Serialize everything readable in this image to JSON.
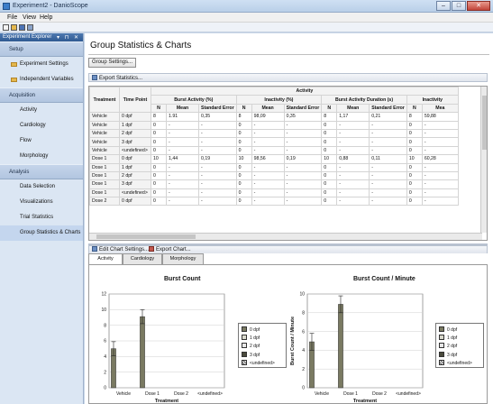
{
  "window": {
    "title": "Experiment2 - DanioScope",
    "buttons": {
      "minimize": "–",
      "maximize": "□",
      "close": "✕"
    }
  },
  "menu": {
    "items": [
      "File",
      "View",
      "Help"
    ]
  },
  "toolbar": {
    "icons": [
      "new-icon",
      "open-icon",
      "save-icon",
      "save-as-icon"
    ]
  },
  "explorer": {
    "title": "Experiment Explorer",
    "header_buttons": "▾ ⊓ ✕",
    "groups": [
      {
        "label": "Setup",
        "items": [
          "Experiment Settings",
          "Independent Variables"
        ]
      },
      {
        "label": "Acquisition",
        "items": [
          "Activity",
          "Cardiology",
          "Flow",
          "Morphology"
        ]
      },
      {
        "label": "Analysis",
        "items": [
          "Data Selection",
          "Visualizations",
          "Trial Statistics",
          "Group Statistics & Charts"
        ]
      }
    ],
    "selected": "Group Statistics & Charts"
  },
  "main": {
    "title": "Group Statistics & Charts",
    "group_settings_label": "Group Settings...",
    "export_statistics_label": "Export Statistics...",
    "edit_chart_settings_label": "Edit Chart Settings...",
    "export_chart_label": "Export Chart...",
    "tabs": [
      "Activity",
      "Cardiology",
      "Morphology"
    ],
    "active_tab": "Activity"
  },
  "table": {
    "top_group": "Activity",
    "fixed_headers": [
      "Treatment",
      "Time Point"
    ],
    "column_groups": [
      "Burst Activity (%)",
      "Inactivity (%)",
      "Burst Activity Duration (s)",
      "Inactivity"
    ],
    "sub_headers": [
      "N",
      "Mean",
      "Standard Error",
      "N",
      "Mean",
      "Standard Error",
      "N",
      "Mean",
      "Standard Error",
      "N",
      "Mea"
    ],
    "rows": [
      [
        "Vehicle",
        "0 dpf",
        "8",
        "1.91",
        "0,35",
        "8",
        "98,09",
        "0,35",
        "8",
        "1,17",
        "0,21",
        "8",
        "59,88"
      ],
      [
        "Vehicle",
        "1 dpf",
        "0",
        "-",
        "-",
        "0",
        "-",
        "-",
        "0",
        "-",
        "-",
        "0",
        "-"
      ],
      [
        "Vehicle",
        "2 dpf",
        "0",
        "-",
        "-",
        "0",
        "-",
        "-",
        "0",
        "-",
        "-",
        "0",
        "-"
      ],
      [
        "Vehicle",
        "3 dpf",
        "0",
        "-",
        "-",
        "0",
        "-",
        "-",
        "0",
        "-",
        "-",
        "0",
        "-"
      ],
      [
        "Vehicle",
        "<undefined>",
        "0",
        "-",
        "-",
        "0",
        "-",
        "-",
        "0",
        "-",
        "-",
        "0",
        "-"
      ],
      [
        "Dose 1",
        "0 dpf",
        "10",
        "1,44",
        "0,19",
        "10",
        "98,56",
        "0,19",
        "10",
        "0,88",
        "0,11",
        "10",
        "60,28"
      ],
      [
        "Dose 1",
        "1 dpf",
        "0",
        "-",
        "-",
        "0",
        "-",
        "-",
        "0",
        "-",
        "-",
        "0",
        "-"
      ],
      [
        "Dose 1",
        "2 dpf",
        "0",
        "-",
        "-",
        "0",
        "-",
        "-",
        "0",
        "-",
        "-",
        "0",
        "-"
      ],
      [
        "Dose 1",
        "3 dpf",
        "0",
        "-",
        "-",
        "0",
        "-",
        "-",
        "0",
        "-",
        "-",
        "0",
        "-"
      ],
      [
        "Dose 1",
        "<undefined>",
        "0",
        "-",
        "-",
        "0",
        "-",
        "-",
        "0",
        "-",
        "-",
        "0",
        "-"
      ],
      [
        "Dose 2",
        "0 dpf",
        "0",
        "-",
        "-",
        "0",
        "-",
        "-",
        "0",
        "-",
        "-",
        "0",
        "-"
      ]
    ]
  },
  "chart_data": [
    {
      "type": "bar",
      "title": "Burst Count",
      "xlabel": "Treatment",
      "ylabel": "",
      "ylim": [
        0,
        12
      ],
      "yticks": [
        0,
        2,
        4,
        6,
        8,
        10,
        12
      ],
      "categories": [
        "Vehicle",
        "Dose 1",
        "Dose 2",
        "<undefined>"
      ],
      "series": [
        {
          "name": "0 dpf",
          "values": [
            5.0,
            9.1,
            null,
            null
          ],
          "errors": [
            0.9,
            0.9,
            null,
            null
          ],
          "color": "#7a7a62"
        },
        {
          "name": "1 dpf",
          "values": [
            null,
            null,
            null,
            null
          ],
          "color": "#d9d9cc"
        },
        {
          "name": "2 dpf",
          "values": [
            null,
            null,
            null,
            null
          ],
          "color": "#e8e8e8"
        },
        {
          "name": "3 dpf",
          "values": [
            null,
            null,
            null,
            null
          ],
          "color": "#4a4a3c"
        },
        {
          "name": "<undefined>",
          "values": [
            null,
            null,
            null,
            null
          ],
          "color": "#ffffff"
        }
      ],
      "legend": "right",
      "grid": true
    },
    {
      "type": "bar",
      "title": "Burst Count / Minute",
      "xlabel": "Treatment",
      "ylabel": "Burst Count / Minute",
      "ylim": [
        0,
        10
      ],
      "yticks": [
        0,
        2,
        4,
        6,
        8,
        10
      ],
      "categories": [
        "Vehicle",
        "Dose 1",
        "Dose 2",
        "<undefined>"
      ],
      "series": [
        {
          "name": "0 dpf",
          "values": [
            4.9,
            8.9,
            null,
            null
          ],
          "errors": [
            0.9,
            0.9,
            null,
            null
          ],
          "color": "#7a7a62"
        },
        {
          "name": "1 dpf",
          "values": [
            null,
            null,
            null,
            null
          ],
          "color": "#d9d9cc"
        },
        {
          "name": "2 dpf",
          "values": [
            null,
            null,
            null,
            null
          ],
          "color": "#e8e8e8"
        },
        {
          "name": "3 dpf",
          "values": [
            null,
            null,
            null,
            null
          ],
          "color": "#4a4a3c"
        },
        {
          "name": "<undefined>",
          "values": [
            null,
            null,
            null,
            null
          ],
          "color": "#ffffff"
        }
      ],
      "legend": "right",
      "grid": true
    }
  ]
}
